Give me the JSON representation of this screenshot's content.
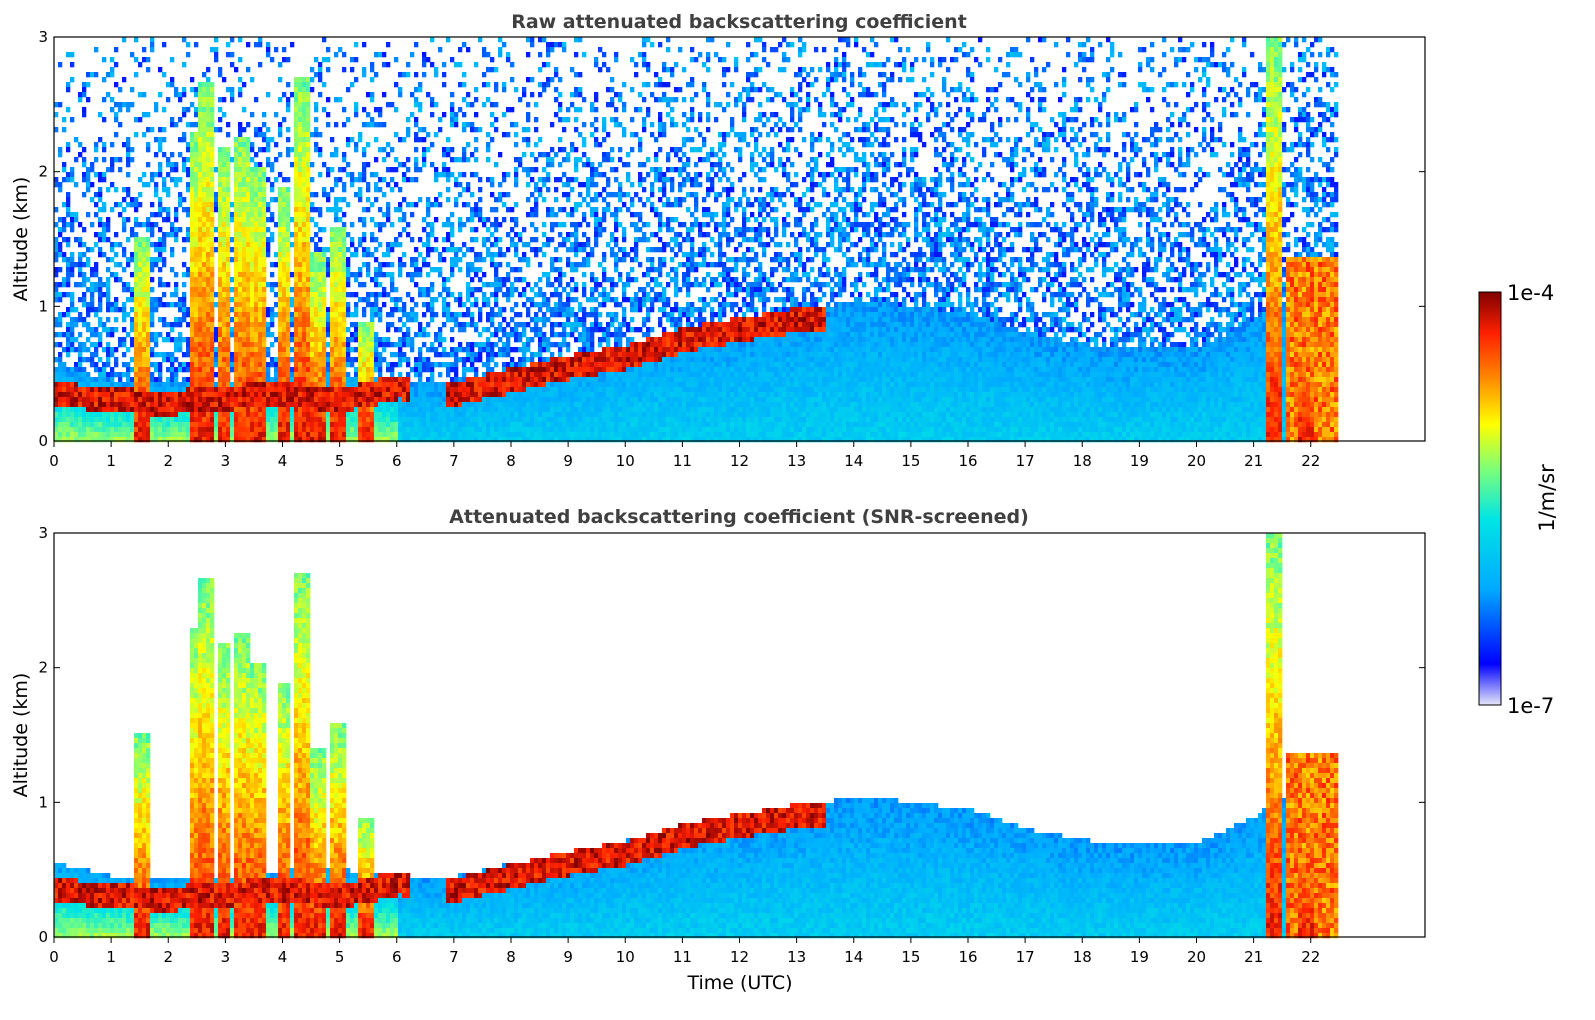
{
  "chart_data": [
    {
      "type": "heatmap",
      "title": "Raw attenuated backscattering coefficient",
      "xlabel": "",
      "ylabel": "Altitude (km)",
      "xlim": [
        0,
        24
      ],
      "ylim": [
        0,
        3
      ],
      "xticks": [
        0,
        1,
        2,
        3,
        4,
        5,
        6,
        7,
        8,
        9,
        10,
        11,
        12,
        13,
        14,
        15,
        16,
        17,
        18,
        19,
        20,
        21,
        22
      ],
      "yticks": [
        0,
        1,
        2,
        3
      ],
      "data_end_time": 22.45,
      "color_scale": "log10 of 1/m/sr",
      "boundary_layer_top_km": [
        [
          0,
          0.55
        ],
        [
          1,
          0.45
        ],
        [
          2,
          0.42
        ],
        [
          3,
          0.45
        ],
        [
          4,
          0.5
        ],
        [
          5,
          0.5
        ],
        [
          6,
          0.45
        ],
        [
          7,
          0.45
        ],
        [
          8,
          0.55
        ],
        [
          9,
          0.6
        ],
        [
          10,
          0.72
        ],
        [
          11,
          0.82
        ],
        [
          12,
          0.85
        ],
        [
          13,
          0.95
        ],
        [
          14,
          1.05
        ],
        [
          15,
          1.0
        ],
        [
          16,
          0.95
        ],
        [
          17,
          0.8
        ],
        [
          18,
          0.72
        ],
        [
          19,
          0.68
        ],
        [
          20,
          0.7
        ],
        [
          21,
          0.9
        ],
        [
          22,
          1.2
        ]
      ],
      "cloud_layer_km": [
        [
          0,
          0.35
        ],
        [
          1,
          0.3
        ],
        [
          2,
          0.28
        ],
        [
          3,
          0.32
        ],
        [
          4,
          0.35
        ],
        [
          5,
          0.3
        ],
        [
          6,
          0.4
        ],
        [
          7,
          0.35
        ],
        [
          8,
          0.45
        ],
        [
          9,
          0.55
        ],
        [
          10,
          0.62
        ],
        [
          11,
          0.75
        ],
        [
          13,
          0.9
        ]
      ],
      "cloud_columns": [
        {
          "t": 1.5,
          "top_km": 1.5
        },
        {
          "t": 2.45,
          "top_km": 2.3
        },
        {
          "t": 2.65,
          "top_km": 2.65
        },
        {
          "t": 2.95,
          "top_km": 2.2
        },
        {
          "t": 3.25,
          "top_km": 2.25
        },
        {
          "t": 3.55,
          "top_km": 2.05
        },
        {
          "t": 4.0,
          "top_km": 1.9
        },
        {
          "t": 4.3,
          "top_km": 2.7
        },
        {
          "t": 4.6,
          "top_km": 1.4
        },
        {
          "t": 4.95,
          "top_km": 1.6
        },
        {
          "t": 5.45,
          "top_km": 0.9
        },
        {
          "t": 21.3,
          "top_km": 3.0
        },
        {
          "t": 21.9,
          "top_km": 1.3
        }
      ]
    },
    {
      "type": "heatmap",
      "title": "Attenuated backscattering coefficient (SNR-screened)",
      "xlabel": "Time (UTC)",
      "ylabel": "Altitude (km)",
      "xlim": [
        0,
        24
      ],
      "ylim": [
        0,
        3
      ],
      "xticks": [
        0,
        1,
        2,
        3,
        4,
        5,
        6,
        7,
        8,
        9,
        10,
        11,
        12,
        13,
        14,
        15,
        16,
        17,
        18,
        19,
        20,
        21,
        22
      ],
      "yticks": [
        0,
        1,
        2,
        3
      ],
      "data_end_time": 22.45,
      "screened": true
    }
  ],
  "colorbar": {
    "label": "1/m/sr",
    "max_label": "1e-4",
    "min_label": "1e-7",
    "colormap": "jet",
    "colors": [
      "#e6e6fa",
      "#0000ff",
      "#00aaff",
      "#00e5e5",
      "#7cff7a",
      "#ffff00",
      "#ff8000",
      "#ff2000",
      "#7f0000"
    ]
  }
}
